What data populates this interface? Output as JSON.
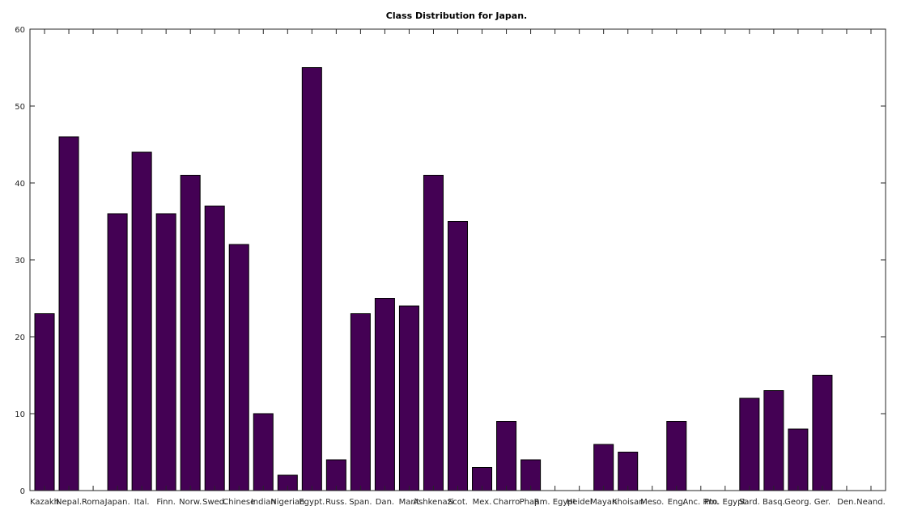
{
  "chart_data": {
    "type": "bar",
    "title": "Class Distribution for Japan.",
    "xlabel": "",
    "ylabel": "",
    "ylim": [
      0,
      60
    ],
    "yticks": [
      0,
      10,
      20,
      30,
      40,
      50,
      60
    ],
    "grid": false,
    "bar_color": "#440154",
    "categories": [
      "Kazakh",
      "Nepal.",
      "Roma",
      "Japan.",
      "Ital.",
      "Finn.",
      "Norw.",
      "Swed.",
      "Chinese",
      "Indian",
      "Nigerian",
      "Egypt.",
      "Russ.",
      "Span.",
      "Dan.",
      "Marit",
      "Ashkenazi",
      "Scot.",
      "Mex.",
      "Charro",
      "Phap.",
      "Rm. Egypt",
      "Heidel",
      "Mayan",
      "Khoisan",
      "Meso.",
      "Eng.",
      "Anc. Rm.",
      "Pto. Egypt",
      "Sard.",
      "Basq.",
      "Georg.",
      "Ger.",
      "Den.",
      "Neand."
    ],
    "values": [
      23,
      46,
      0,
      36,
      44,
      36,
      41,
      37,
      32,
      10,
      2,
      55,
      4,
      23,
      25,
      24,
      41,
      35,
      3,
      9,
      4,
      0,
      0,
      6,
      5,
      0,
      9,
      0,
      0,
      12,
      13,
      8,
      15,
      0,
      0
    ]
  }
}
